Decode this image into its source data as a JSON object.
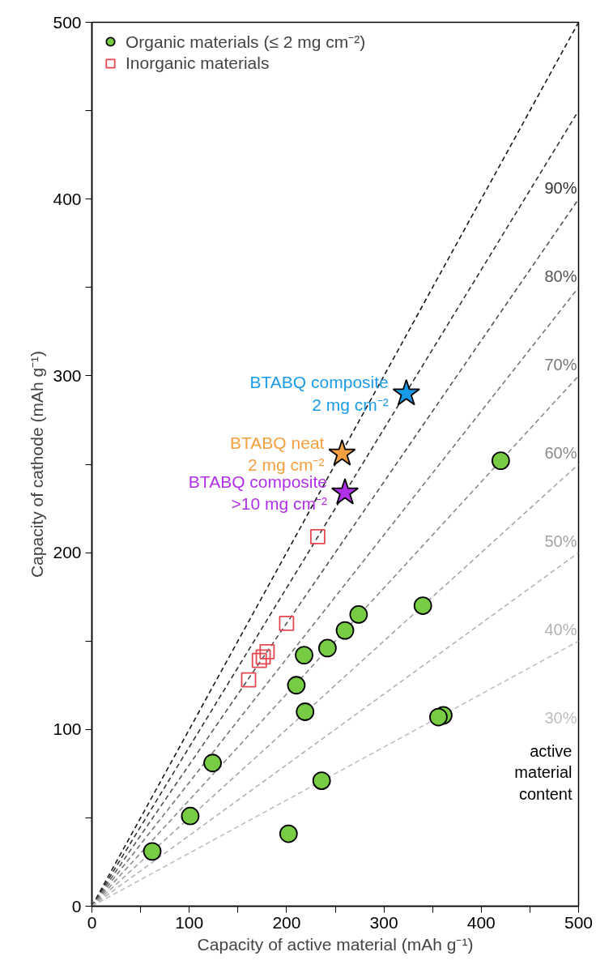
{
  "chart_data": {
    "type": "scatter",
    "xlabel": "Capacity of active material (mAh g⁻¹)",
    "ylabel": "Capacity of cathode (mAh g⁻¹)",
    "xlim": [
      0,
      500
    ],
    "ylim": [
      0,
      500
    ],
    "xticks": [
      0,
      {
        "value": 50,
        "label": null
      },
      100,
      {
        "value": 150,
        "label": null
      },
      200,
      {
        "value": 250,
        "label": null
      },
      300,
      {
        "value": 350,
        "label": null
      },
      400,
      {
        "value": 450,
        "label": null
      },
      500
    ],
    "yticks": [
      0,
      {
        "value": 50,
        "label": null
      },
      100,
      {
        "value": 150,
        "label": null
      },
      200,
      {
        "value": 250,
        "label": null
      },
      300,
      {
        "value": 350,
        "label": null
      },
      400,
      {
        "value": 450,
        "label": null
      },
      500
    ],
    "grid": false,
    "legend": "top left",
    "annotations": [
      "active\nmaterial\ncontent"
    ],
    "series": [
      {
        "type": "line",
        "line_style": "dashed",
        "color": "#1a1a1a",
        "x": [
          0,
          500
        ],
        "values": [
          0,
          500
        ]
      },
      {
        "type": "line",
        "line_style": "dashed",
        "name": "90%",
        "color": "#333333",
        "x": [
          0,
          500
        ],
        "values": [
          0,
          450
        ]
      },
      {
        "type": "line",
        "line_style": "dashed",
        "name": "80%",
        "color": "#555555",
        "x": [
          0,
          500
        ],
        "values": [
          0,
          400
        ]
      },
      {
        "type": "line",
        "line_style": "dashed",
        "name": "70%",
        "color": "#777777",
        "x": [
          0,
          500
        ],
        "values": [
          0,
          350
        ]
      },
      {
        "type": "line",
        "line_style": "dashed",
        "name": "60%",
        "color": "#8c8c8c",
        "x": [
          0,
          500
        ],
        "values": [
          0,
          300
        ]
      },
      {
        "type": "line",
        "line_style": "dashed",
        "name": "50%",
        "color": "#a6a6a6",
        "x": [
          0,
          500
        ],
        "values": [
          0,
          250
        ]
      },
      {
        "type": "line",
        "line_style": "dashed",
        "name": "40%",
        "color": "#b3b3b3",
        "x": [
          0,
          500
        ],
        "values": [
          0,
          200
        ]
      },
      {
        "type": "line",
        "line_style": "dashed",
        "name": "30%",
        "color": "#bfbfbf",
        "x": [
          0,
          500
        ],
        "values": [
          0,
          150
        ]
      },
      {
        "name": "Organic materials (≤ 2 mg cm⁻²)",
        "marker": "circle",
        "color": "#77cc44",
        "x": [
          62,
          101,
          124,
          202,
          236,
          219,
          210,
          361,
          356,
          420,
          340,
          274,
          260,
          242,
          218
        ],
        "values": [
          31,
          51,
          81,
          41,
          71,
          110,
          125,
          108,
          107,
          252,
          170,
          165,
          156,
          146,
          142
        ]
      },
      {
        "name": "Inorganic materials",
        "marker": "square",
        "color": "#e8474f",
        "x": [
          161,
          172,
          176,
          180,
          200,
          232
        ],
        "values": [
          128,
          139,
          141,
          144,
          160,
          209
        ]
      },
      {
        "name": "BTABQ composite\n2 mg cm⁻²",
        "marker": "star",
        "color": "#1a9bea",
        "x": [
          323
        ],
        "values": [
          290
        ]
      },
      {
        "name": "BTABQ neat\n2 mg cm⁻²",
        "marker": "star",
        "color": "#f4a040",
        "x": [
          257
        ],
        "values": [
          256
        ]
      },
      {
        "name": "BTABQ composite\n>10 mg cm⁻²",
        "marker": "star",
        "color": "#b030e8",
        "x": [
          260
        ],
        "values": [
          234
        ]
      }
    ]
  }
}
